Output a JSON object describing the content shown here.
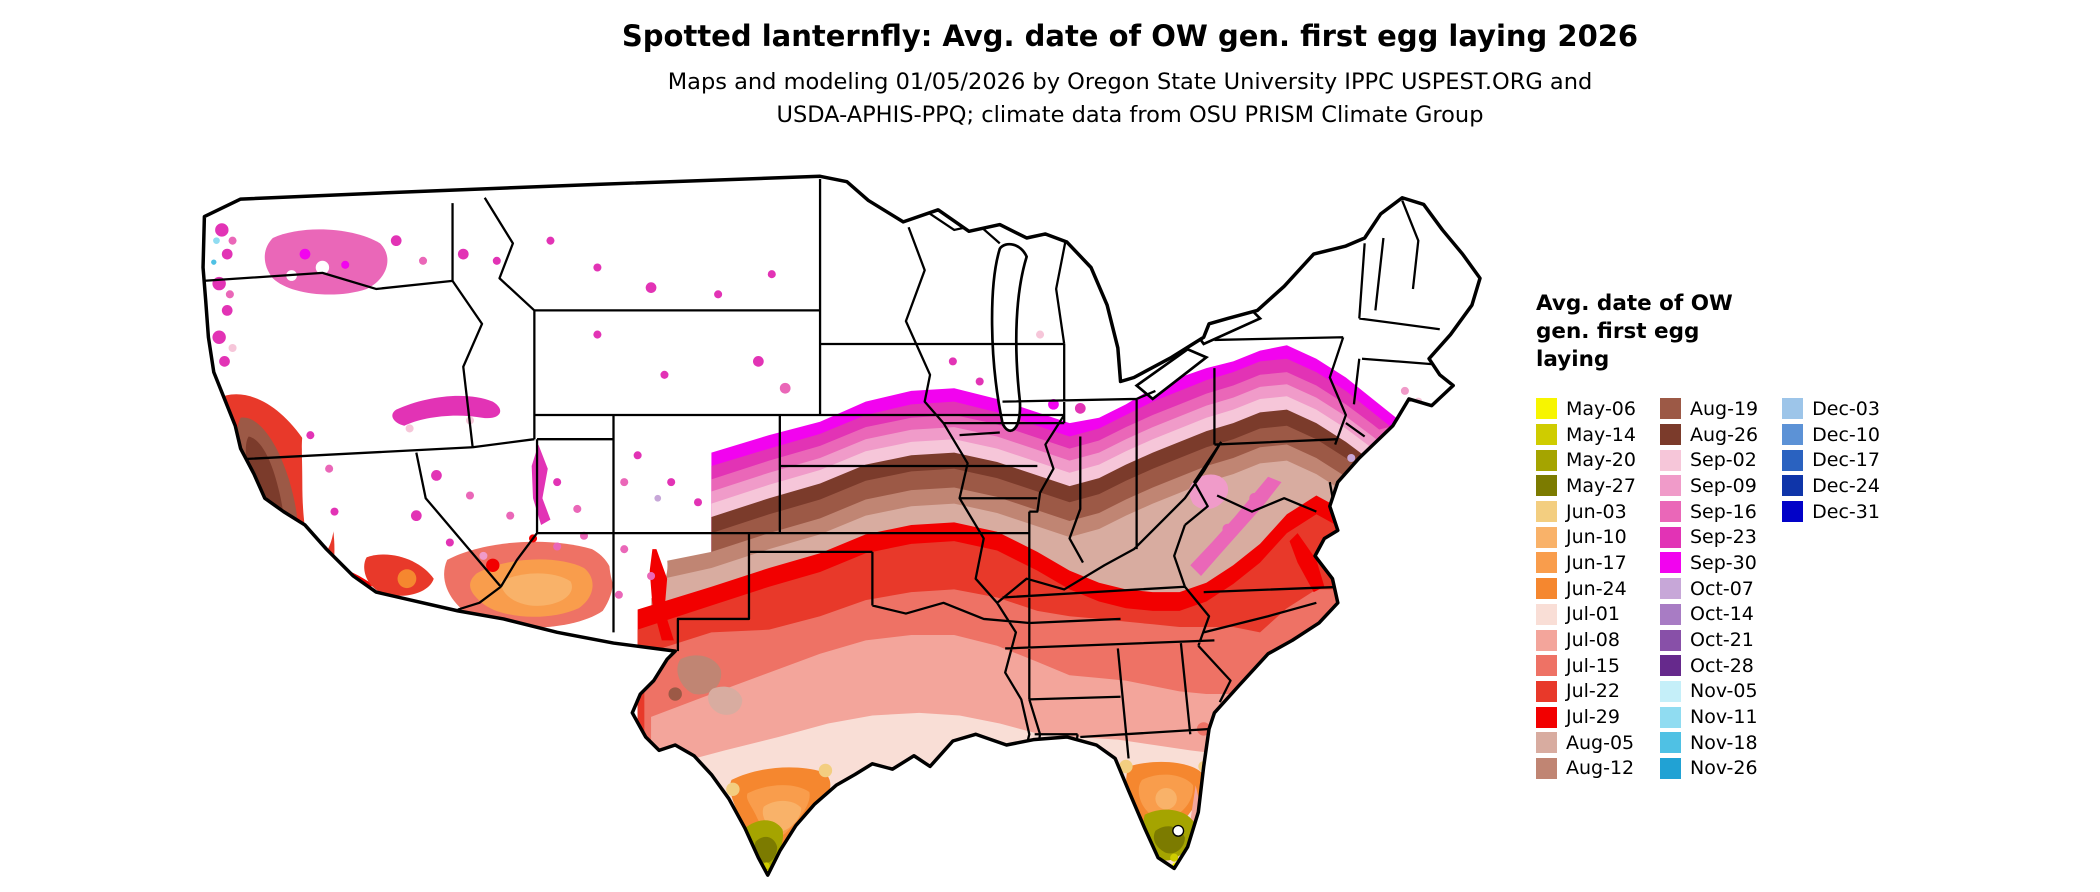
{
  "title": "Spotted lanternfly: Avg. date of OW gen. first egg laying 2026",
  "subtitle": {
    "line1": "Maps and modeling 01/05/2026 by Oregon State University IPPC USPEST.ORG and",
    "line2": "USDA-APHIS-PPQ; climate data from OSU PRISM Climate Group"
  },
  "legend": {
    "title_lines": [
      "Avg. date of OW",
      "gen. first egg",
      "laying"
    ],
    "columns": [
      {
        "entries": [
          {
            "label": "May-06",
            "color": "#F7F500"
          },
          {
            "label": "May-14",
            "color": "#CFCC00"
          },
          {
            "label": "May-20",
            "color": "#A5A400"
          },
          {
            "label": "May-27",
            "color": "#7C7B00"
          },
          {
            "label": "Jun-03",
            "color": "#F3CE80"
          },
          {
            "label": "Jun-10",
            "color": "#F9B269"
          },
          {
            "label": "Jun-17",
            "color": "#F99D4C"
          },
          {
            "label": "Jun-24",
            "color": "#F5872F"
          },
          {
            "label": "Jul-01",
            "color": "#F9DED6"
          },
          {
            "label": "Jul-08",
            "color": "#F3A59B"
          },
          {
            "label": "Jul-15",
            "color": "#EE7265"
          },
          {
            "label": "Jul-22",
            "color": "#E8392A"
          },
          {
            "label": "Jul-29",
            "color": "#F20000"
          },
          {
            "label": "Aug-05",
            "color": "#D8ACA0"
          },
          {
            "label": "Aug-12",
            "color": "#C08573"
          }
        ]
      },
      {
        "entries": [
          {
            "label": "Aug-19",
            "color": "#9C5946"
          },
          {
            "label": "Aug-26",
            "color": "#7B3B2B"
          },
          {
            "label": "Sep-02",
            "color": "#F6C6D9"
          },
          {
            "label": "Sep-09",
            "color": "#F09BC9"
          },
          {
            "label": "Sep-16",
            "color": "#EA67B8"
          },
          {
            "label": "Sep-23",
            "color": "#E233B5"
          },
          {
            "label": "Sep-30",
            "color": "#F203EF"
          },
          {
            "label": "Oct-07",
            "color": "#C7A7D8"
          },
          {
            "label": "Oct-14",
            "color": "#A87CC4"
          },
          {
            "label": "Oct-21",
            "color": "#8850A8"
          },
          {
            "label": "Oct-28",
            "color": "#66298C"
          },
          {
            "label": "Nov-05",
            "color": "#C5EFF9"
          },
          {
            "label": "Nov-11",
            "color": "#90DCF1"
          },
          {
            "label": "Nov-18",
            "color": "#4FC1E4"
          },
          {
            "label": "Nov-26",
            "color": "#21A2D4"
          }
        ]
      },
      {
        "entries": [
          {
            "label": "Dec-03",
            "color": "#9DC5E9"
          },
          {
            "label": "Dec-10",
            "color": "#5C92D6"
          },
          {
            "label": "Dec-17",
            "color": "#2A62C0"
          },
          {
            "label": "Dec-24",
            "color": "#0F35A9"
          },
          {
            "label": "Dec-31",
            "color": "#0202C8"
          }
        ]
      }
    ]
  }
}
